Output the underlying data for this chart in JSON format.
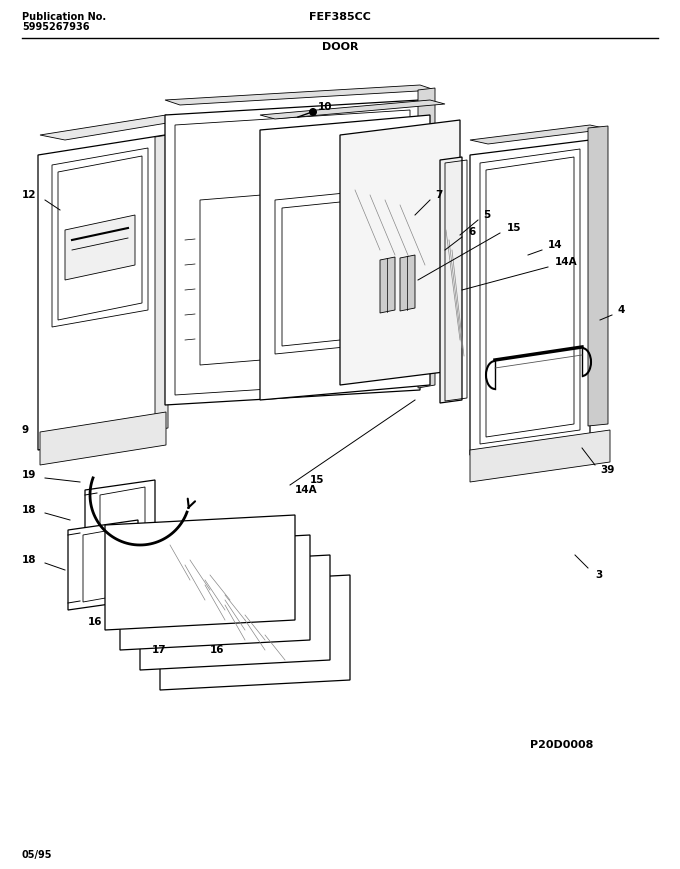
{
  "title_left_line1": "Publication No.",
  "title_left_line2": "5995267936",
  "title_center": "FEF385CC",
  "subtitle_center": "DOOR",
  "bottom_left": "05/95",
  "bottom_right": "P20D0008",
  "bg_color": "#ffffff",
  "line_color": "#000000",
  "text_color": "#000000",
  "fig_width": 6.8,
  "fig_height": 8.69,
  "dpi": 100
}
